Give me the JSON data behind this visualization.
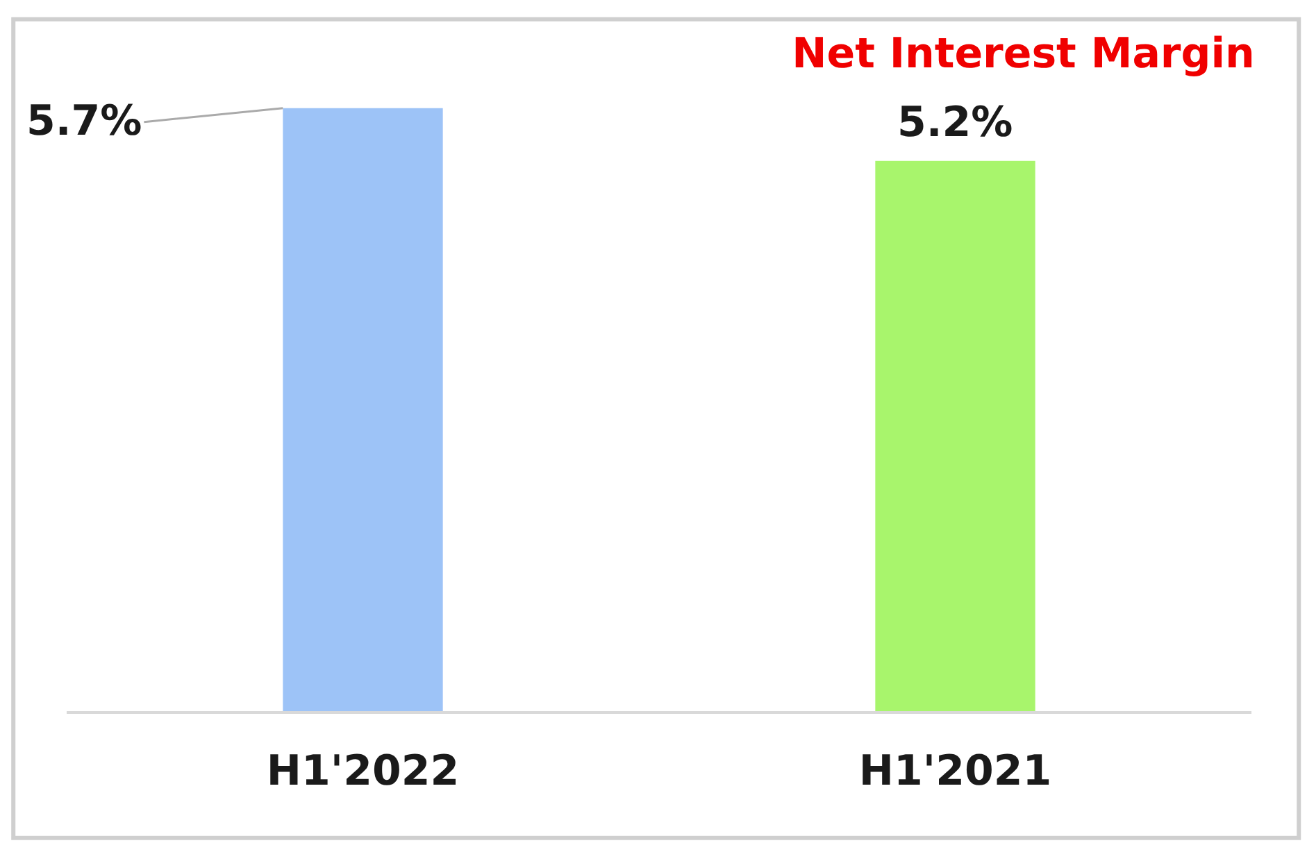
{
  "chart_data": {
    "type": "bar",
    "title": "Net Interest Margin",
    "categories": [
      "H1'2022",
      "H1'2021"
    ],
    "values": [
      5.7,
      5.2
    ],
    "colors": [
      "#9dc3f7",
      "#a8f56c"
    ],
    "value_labels": [
      "5.7%",
      "5.2%"
    ],
    "tick_labels": "x",
    "legend": false
  }
}
